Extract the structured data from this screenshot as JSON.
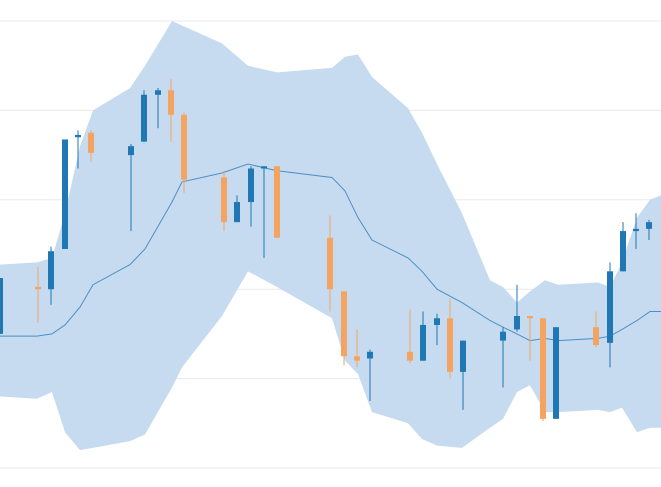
{
  "chart_data": {
    "type": "candlestick",
    "title": "",
    "xlabel": "",
    "ylabel": "",
    "ylim": [
      -5,
      100
    ],
    "xlim": [
      0,
      661
    ],
    "grid": true,
    "gridlines_y": [
      0,
      20,
      40,
      60,
      80,
      100
    ],
    "colors": {
      "up": "#1f77b4",
      "down": "#f4a460",
      "band_fill": "#c6dbef",
      "middle_line": "#4c8fc4",
      "grid": "#e8e8e8"
    },
    "bollinger_band": {
      "x": [
        0,
        37,
        52,
        65,
        80,
        93,
        130,
        145,
        172,
        182,
        222,
        248,
        277,
        332,
        345,
        358,
        372,
        408,
        422,
        437,
        462,
        490,
        503,
        517,
        530,
        545,
        558,
        598,
        610,
        622,
        637,
        650,
        661
      ],
      "upper": [
        45.5,
        46,
        47,
        57,
        72,
        80,
        85,
        90,
        100,
        99,
        95,
        90,
        88.5,
        89.5,
        92,
        92.5,
        87.5,
        80.5,
        75,
        68,
        57,
        42,
        40.5,
        37,
        39.5,
        42,
        41,
        41.5,
        40.5,
        46,
        56,
        60,
        61
      ],
      "middle": [
        29.5,
        29.5,
        30,
        32,
        36,
        41,
        45.5,
        49,
        59.5,
        64,
        66,
        68,
        66.5,
        65,
        62,
        56,
        51,
        47,
        44,
        40,
        37,
        33,
        31.5,
        30,
        28.5,
        29,
        28.5,
        29,
        29.5,
        31,
        33,
        35,
        35
      ],
      "lower": [
        16,
        15.5,
        17,
        8,
        4,
        4.5,
        6,
        7.5,
        18,
        22.5,
        34,
        44,
        40.5,
        33.5,
        24,
        21,
        12.5,
        10,
        6.5,
        5,
        4.5,
        9,
        11,
        17,
        18.5,
        12.5,
        12.5,
        13,
        12.5,
        13.5,
        8,
        9,
        9
      ]
    },
    "candles": [
      {
        "x": 0,
        "open": 30,
        "close": 42.5,
        "high": 42.5,
        "low": 30
      },
      {
        "x": 38,
        "open": 40.5,
        "close": 40,
        "high": 45,
        "low": 32.5
      },
      {
        "x": 51,
        "open": 40,
        "close": 48.5,
        "high": 49.5,
        "low": 36.5
      },
      {
        "x": 65,
        "open": 49,
        "close": 73.5,
        "high": 73.5,
        "low": 49
      },
      {
        "x": 78,
        "open": 74,
        "close": 74.5,
        "high": 75.5,
        "low": 67
      },
      {
        "x": 91,
        "open": 75,
        "close": 70.5,
        "high": 75.5,
        "low": 68.5
      },
      {
        "x": 131,
        "open": 70,
        "close": 72,
        "high": 72.5,
        "low": 53
      },
      {
        "x": 144,
        "open": 73,
        "close": 83.5,
        "high": 84.5,
        "low": 73
      },
      {
        "x": 158,
        "open": 83.5,
        "close": 84.5,
        "high": 85,
        "low": 76
      },
      {
        "x": 171,
        "open": 84.5,
        "close": 79,
        "high": 87,
        "low": 73
      },
      {
        "x": 184,
        "open": 79,
        "close": 64.5,
        "high": 79.5,
        "low": 61.5
      },
      {
        "x": 224,
        "open": 65,
        "close": 55,
        "high": 66.5,
        "low": 53
      },
      {
        "x": 237,
        "open": 55,
        "close": 59.5,
        "high": 61,
        "low": 55
      },
      {
        "x": 251,
        "open": 59.5,
        "close": 67,
        "high": 67.5,
        "low": 54
      },
      {
        "x": 264,
        "open": 67,
        "close": 67.5,
        "high": 67.5,
        "low": 47
      },
      {
        "x": 277,
        "open": 67.5,
        "close": 51.5,
        "high": 67.5,
        "low": 51.5
      },
      {
        "x": 330,
        "open": 51.5,
        "close": 40,
        "high": 56.5,
        "low": 35
      },
      {
        "x": 344,
        "open": 39.5,
        "close": 25,
        "high": 39.5,
        "low": 23
      },
      {
        "x": 357,
        "open": 25,
        "close": 24,
        "high": 31,
        "low": 22.5
      },
      {
        "x": 370,
        "open": 24.5,
        "close": 26,
        "high": 26.5,
        "low": 15
      },
      {
        "x": 410,
        "open": 26,
        "close": 24,
        "high": 35.5,
        "low": 23.5
      },
      {
        "x": 423,
        "open": 24,
        "close": 32,
        "high": 35,
        "low": 24
      },
      {
        "x": 437,
        "open": 32,
        "close": 33.5,
        "high": 34.5,
        "low": 27.5
      },
      {
        "x": 450,
        "open": 33.5,
        "close": 21.5,
        "high": 38,
        "low": 20
      },
      {
        "x": 463,
        "open": 21.5,
        "close": 28.5,
        "high": 28.5,
        "low": 13
      },
      {
        "x": 503,
        "open": 28.5,
        "close": 30.5,
        "high": 31.5,
        "low": 18
      },
      {
        "x": 517,
        "open": 31,
        "close": 34,
        "high": 41,
        "low": 30.5
      },
      {
        "x": 530,
        "open": 34,
        "close": 33.5,
        "high": 34,
        "low": 24
      },
      {
        "x": 543,
        "open": 33.5,
        "close": 11,
        "high": 33.5,
        "low": 10.5
      },
      {
        "x": 556,
        "open": 11,
        "close": 31.5,
        "high": 31.5,
        "low": 11
      },
      {
        "x": 596,
        "open": 31.5,
        "close": 27.5,
        "high": 35,
        "low": 27
      },
      {
        "x": 610,
        "open": 28,
        "close": 44,
        "high": 46,
        "low": 22.5
      },
      {
        "x": 623,
        "open": 44,
        "close": 53,
        "high": 55,
        "low": 44
      },
      {
        "x": 636,
        "open": 53,
        "close": 53.5,
        "high": 57,
        "low": 49
      },
      {
        "x": 649,
        "open": 53.5,
        "close": 55,
        "high": 55.5,
        "low": 51
      }
    ]
  }
}
